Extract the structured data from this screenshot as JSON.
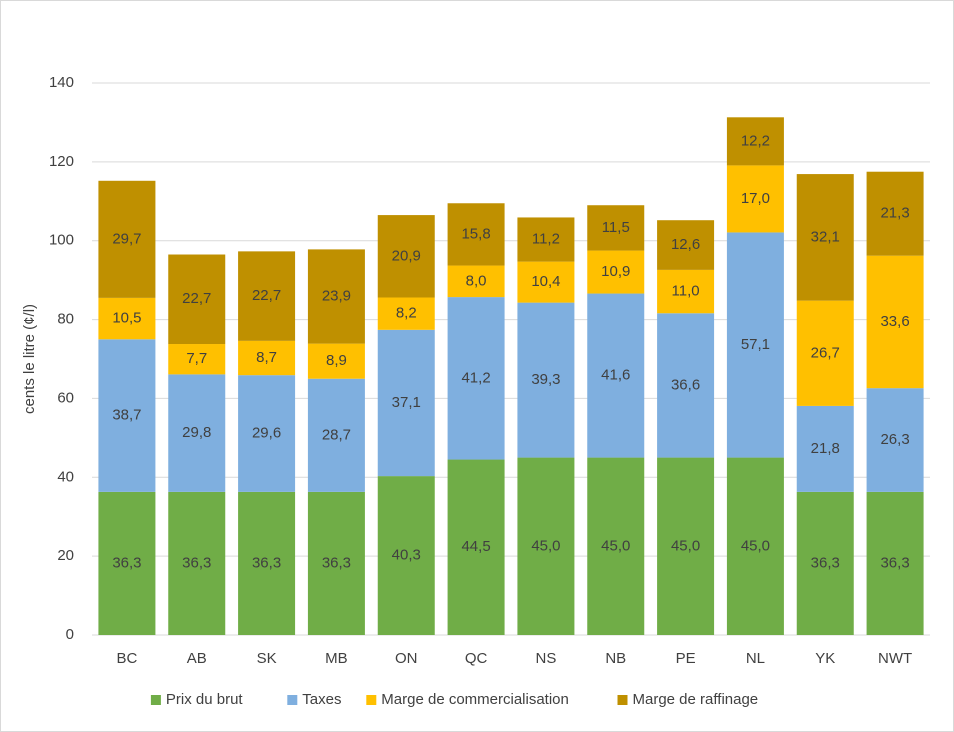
{
  "chart_data": {
    "type": "stacked_bar",
    "y_axis_label": "cents le litre (¢/l)",
    "categories": [
      "BC",
      "AB",
      "SK",
      "MB",
      "ON",
      "QC",
      "NS",
      "NB",
      "PE",
      "NL",
      "YK",
      "NWT"
    ],
    "series": [
      {
        "name": "Prix du brut",
        "color": "#70ad47",
        "values": [
          36.3,
          36.3,
          36.3,
          36.3,
          40.3,
          44.5,
          45.0,
          45.0,
          45.0,
          45.0,
          36.3,
          36.3
        ],
        "value_labels": [
          "36,3",
          "36,3",
          "36,3",
          "36,3",
          "40,3",
          "44,5",
          "45,0",
          "45,0",
          "45,0",
          "45,0",
          "36,3",
          "36,3"
        ]
      },
      {
        "name": "Taxes",
        "color": "#7fafdf",
        "values": [
          38.7,
          29.8,
          29.6,
          28.7,
          37.1,
          41.2,
          39.3,
          41.6,
          36.6,
          57.1,
          21.8,
          26.3
        ],
        "value_labels": [
          "38,7",
          "29,8",
          "29,6",
          "28,7",
          "37,1",
          "41,2",
          "39,3",
          "41,6",
          "36,6",
          "57,1",
          "21,8",
          "26,3"
        ]
      },
      {
        "name": "Marge de commercialisation",
        "color": "#ffc000",
        "values": [
          10.5,
          7.7,
          8.7,
          8.9,
          8.2,
          8.0,
          10.4,
          10.9,
          11.0,
          17.0,
          26.7,
          33.6
        ],
        "value_labels": [
          "10,5",
          "7,7",
          "8,7",
          "8,9",
          "8,2",
          "8,0",
          "10,4",
          "10,9",
          "11,0",
          "17,0",
          "26,7",
          "33,6"
        ]
      },
      {
        "name": "Marge de raffinage",
        "color": "#bf9000",
        "values": [
          29.7,
          22.7,
          22.7,
          23.9,
          20.9,
          15.8,
          11.2,
          11.5,
          12.6,
          12.2,
          32.1,
          21.3
        ],
        "value_labels": [
          "29,7",
          "22,7",
          "22,7",
          "23,9",
          "20,9",
          "15,8",
          "11,2",
          "11,5",
          "12,6",
          "12,2",
          "32,1",
          "21,3"
        ]
      }
    ],
    "ylim": [
      0,
      140
    ],
    "yticks": [
      0,
      20,
      40,
      60,
      80,
      100,
      120,
      140
    ],
    "grid": true,
    "legend": "bottom"
  }
}
